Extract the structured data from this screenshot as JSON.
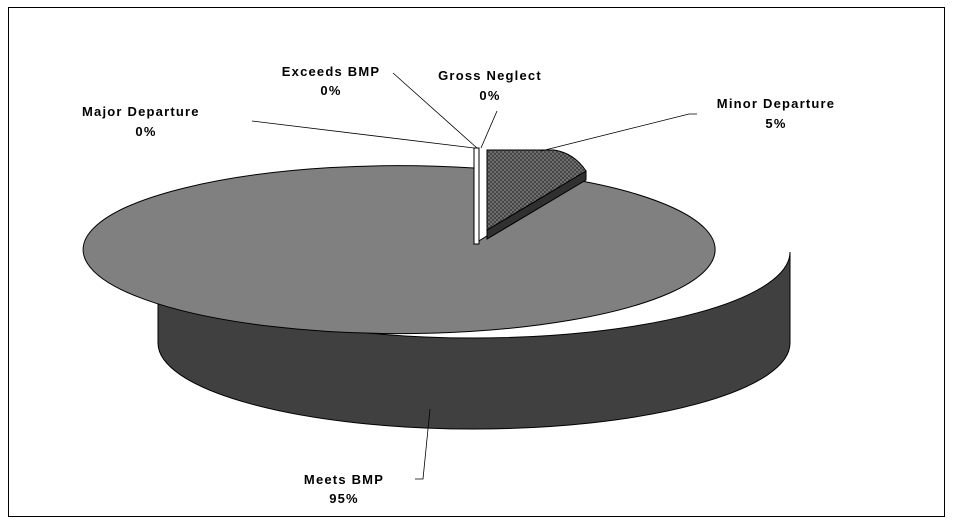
{
  "chart_data": {
    "type": "pie",
    "style": "3d-exploded",
    "slices": [
      {
        "label": "Meets BMP",
        "pct_label": "95%",
        "value": 95,
        "color": "#808080",
        "side_color": "#404040"
      },
      {
        "label": "Minor Departure",
        "pct_label": "5%",
        "value": 5,
        "color": "#6a6a6a",
        "side_color": "#303030",
        "pattern": "crosshatch"
      },
      {
        "label": "Gross Neglect",
        "pct_label": "0%",
        "value": 0,
        "color": "#ffffff"
      },
      {
        "label": "Exceeds BMP",
        "pct_label": "0%",
        "value": 0,
        "color": "#ffffff"
      },
      {
        "label": "Major Departure",
        "pct_label": "0%",
        "value": 0,
        "color": "#ffffff"
      }
    ],
    "legend": "none"
  }
}
